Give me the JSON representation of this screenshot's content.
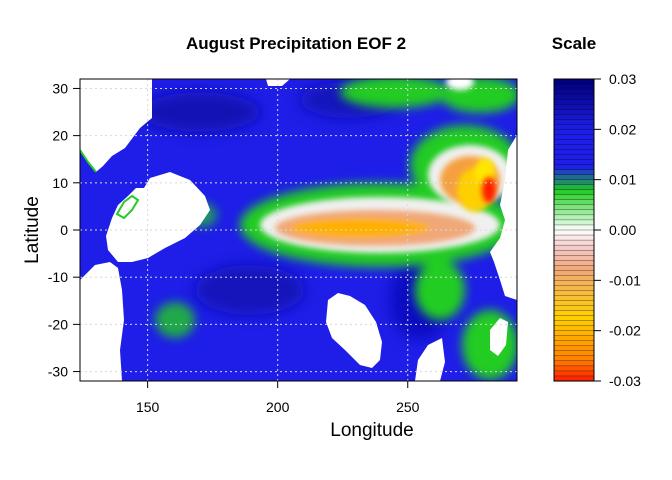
{
  "chart_data": {
    "type": "heatmap",
    "title": "August Precipitation EOF 2",
    "xlabel": "Longitude",
    "ylabel": "Latitude",
    "xlim": [
      124,
      292
    ],
    "ylim": [
      -32,
      32
    ],
    "x_ticks": [
      "150",
      "200",
      "250"
    ],
    "x_tick_values": [
      150,
      200,
      250
    ],
    "y_ticks": [
      "30",
      "20",
      "10",
      "0",
      "-10",
      "-20",
      "-30"
    ],
    "y_tick_values": [
      30,
      20,
      10,
      0,
      -10,
      -20,
      -30
    ],
    "grid": true,
    "scale": {
      "title": "Scale",
      "range": [
        -0.03,
        0.03
      ],
      "ticks": [
        "0.03",
        "0.02",
        "0.01",
        "0.00",
        "-0.01",
        "-0.02",
        "-0.03"
      ],
      "tick_values": [
        0.03,
        0.02,
        0.01,
        0.0,
        -0.01,
        -0.02,
        -0.03
      ],
      "colors": {
        "max": "#00007a",
        "high": "#1e1ee8",
        "mid_high": "#22cc22",
        "zero": "#ffffff",
        "mid_low": "#f0a878",
        "low": "#ffd000",
        "min": "#ff1a00"
      }
    },
    "colors": {
      "missing": "#ffffff",
      "dominant": "#1e1ee8"
    }
  }
}
